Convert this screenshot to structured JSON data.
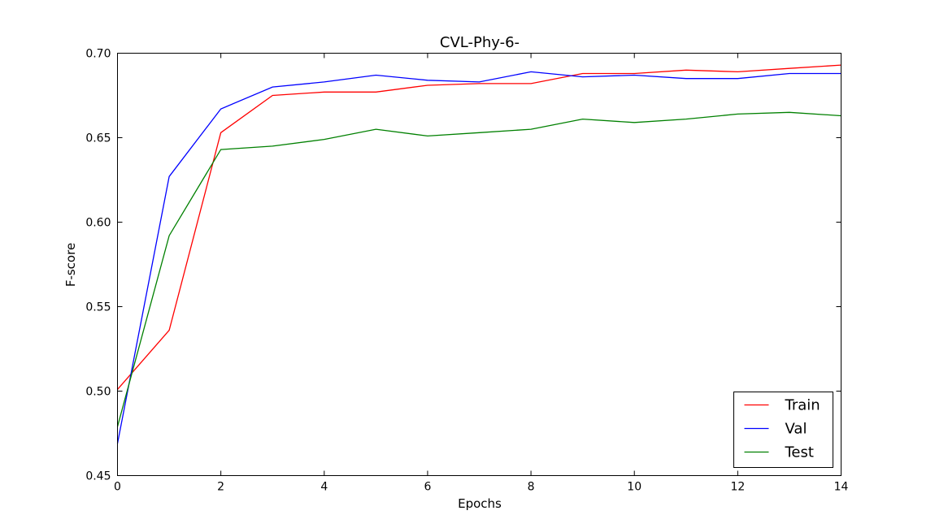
{
  "chart_data": {
    "type": "line",
    "title": "CVL-Phy-6-",
    "xlabel": "Epochs",
    "ylabel": "F-score",
    "xlim": [
      0,
      14
    ],
    "ylim": [
      0.45,
      0.7
    ],
    "xticks": [
      "0",
      "2",
      "4",
      "6",
      "8",
      "10",
      "12",
      "14"
    ],
    "yticks": [
      "0.45",
      "0.50",
      "0.55",
      "0.60",
      "0.65",
      "0.70"
    ],
    "grid": false,
    "legend_position": "lower-right",
    "x": [
      0,
      1,
      2,
      3,
      4,
      5,
      6,
      7,
      8,
      9,
      10,
      11,
      12,
      13,
      14
    ],
    "series": [
      {
        "name": "Train",
        "color": "#ff0000",
        "values": [
          0.501,
          0.536,
          0.653,
          0.675,
          0.677,
          0.677,
          0.681,
          0.682,
          0.682,
          0.688,
          0.688,
          0.69,
          0.689,
          0.691,
          0.693
        ]
      },
      {
        "name": "Val",
        "color": "#0000ff",
        "values": [
          0.469,
          0.627,
          0.667,
          0.68,
          0.683,
          0.687,
          0.684,
          0.683,
          0.689,
          0.686,
          0.687,
          0.685,
          0.685,
          0.688,
          0.688
        ]
      },
      {
        "name": "Test",
        "color": "#008000",
        "values": [
          0.479,
          0.592,
          0.643,
          0.645,
          0.649,
          0.655,
          0.651,
          0.653,
          0.655,
          0.661,
          0.659,
          0.661,
          0.664,
          0.665,
          0.663
        ]
      }
    ]
  }
}
